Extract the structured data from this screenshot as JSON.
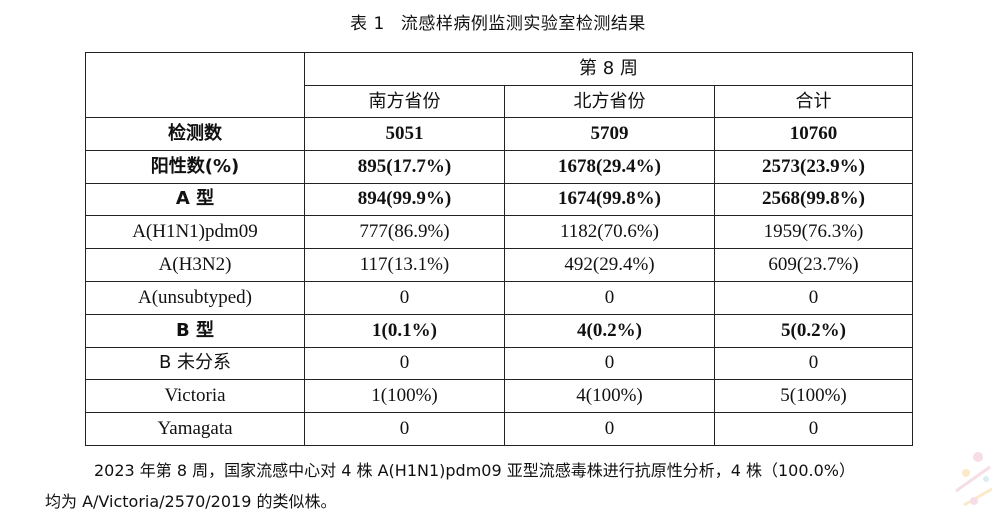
{
  "caption": {
    "number": "表 1",
    "title": "流感样病例监测实验室检测结果"
  },
  "table": {
    "week_header": "第 8 周",
    "columns": [
      "南方省份",
      "北方省份",
      "合计"
    ],
    "rows": [
      {
        "label": "检测数",
        "values": [
          "5051",
          "5709",
          "10760"
        ],
        "bold": true
      },
      {
        "label": "阳性数(%)",
        "values": [
          "895(17.7%)",
          "1678(29.4%)",
          "2573(23.9%)"
        ],
        "bold": true
      },
      {
        "label": "A 型",
        "values": [
          "894(99.9%)",
          "1674(99.8%)",
          "2568(99.8%)"
        ],
        "bold": true
      },
      {
        "label": "A(H1N1)pdm09",
        "values": [
          "777(86.9%)",
          "1182(70.6%)",
          "1959(76.3%)"
        ],
        "bold": false
      },
      {
        "label": "A(H3N2)",
        "values": [
          "117(13.1%)",
          "492(29.4%)",
          "609(23.7%)"
        ],
        "bold": false
      },
      {
        "label": "A(unsubtyped)",
        "values": [
          "0",
          "0",
          "0"
        ],
        "bold": false
      },
      {
        "label": "B 型",
        "values": [
          "1(0.1%)",
          "4(0.2%)",
          "5(0.2%)"
        ],
        "bold": true
      },
      {
        "label": "B 未分系",
        "values": [
          "0",
          "0",
          "0"
        ],
        "bold": false
      },
      {
        "label": "Victoria",
        "values": [
          "1(100%)",
          "4(100%)",
          "5(100%)"
        ],
        "bold": false
      },
      {
        "label": "Yamagata",
        "values": [
          "0",
          "0",
          "0"
        ],
        "bold": false
      }
    ]
  },
  "footnote": {
    "line1": "2023 年第 8 周，国家流感中心对 4 株 A(H1N1)pdm09 亚型流感毒株进行抗原性分析，4 株（100.0%）",
    "line2": "均为 A/Victoria/2570/2019 的类似株。"
  }
}
